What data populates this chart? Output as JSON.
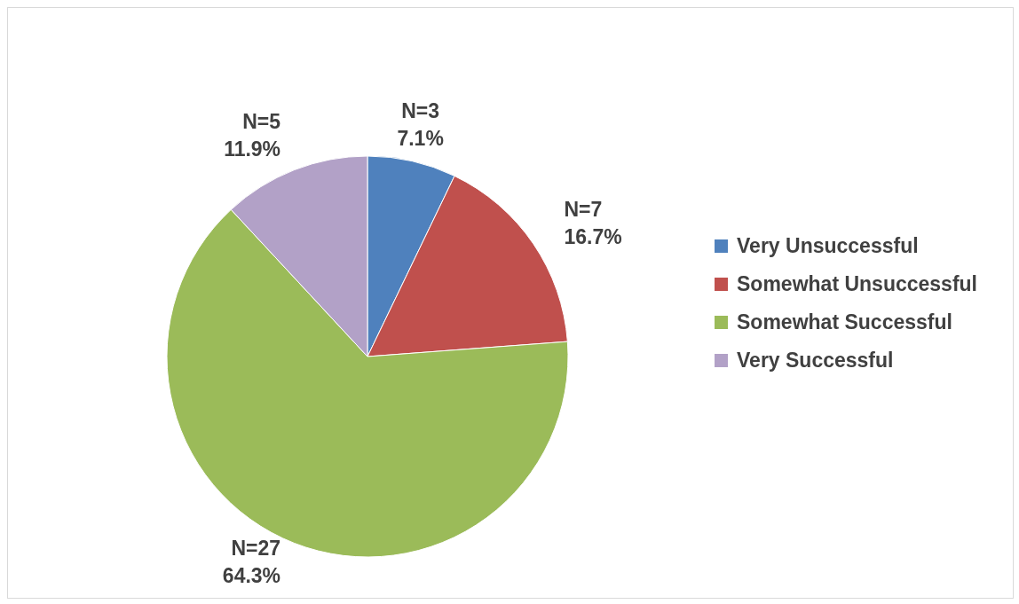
{
  "chart_data": {
    "type": "pie",
    "categories": [
      "Very Unsuccessful",
      "Somewhat Unsuccessful",
      "Somewhat Successful",
      "Very Successful"
    ],
    "values": [
      3,
      7,
      27,
      5
    ],
    "colors": [
      "#4f81bd",
      "#c0504d",
      "#9bbb59",
      "#b2a1c7"
    ],
    "value_labels": [
      "N=3\n7.1%",
      "N=7\n16.7%",
      "N=27\n64.3%",
      "N=5\n11.9%"
    ],
    "legend": "right"
  }
}
